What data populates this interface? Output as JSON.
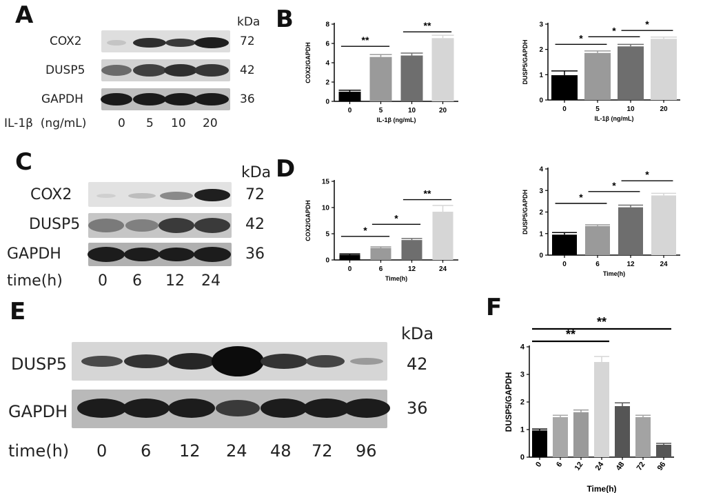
{
  "panels": {
    "A": {
      "letter": "A",
      "kda_header": "kDa",
      "rows": [
        {
          "protein": "COX2",
          "kda": "72"
        },
        {
          "protein": "DUSP5",
          "kda": "42"
        },
        {
          "protein": "GAPDH",
          "kda": "36"
        }
      ],
      "condition_label": "IL-1β  (ng/mL)",
      "lanes": [
        "0",
        "5",
        "10",
        "20"
      ]
    },
    "C": {
      "letter": "C",
      "kda_header": "kDa",
      "rows": [
        {
          "protein": "COX2",
          "kda": "72"
        },
        {
          "protein": "DUSP5",
          "kda": "42"
        },
        {
          "protein": "GAPDH",
          "kda": "36"
        }
      ],
      "condition_label": "time(h)",
      "lanes": [
        "0",
        "6",
        "12",
        "24"
      ]
    },
    "E": {
      "letter": "E",
      "kda_header": "kDa",
      "rows": [
        {
          "protein": "DUSP5",
          "kda": "42"
        },
        {
          "protein": "GAPDH",
          "kda": "36"
        }
      ],
      "condition_label": "time(h)",
      "lanes": [
        "0",
        "6",
        "12",
        "24",
        "48",
        "72",
        "96"
      ]
    },
    "B": {
      "letter": "B"
    },
    "D": {
      "letter": "D"
    },
    "F": {
      "letter": "F"
    }
  },
  "chart_data": [
    {
      "id": "B1",
      "type": "bar",
      "categories": [
        "0",
        "5",
        "10",
        "20"
      ],
      "values": [
        1.0,
        4.6,
        4.75,
        6.55
      ],
      "errors": [
        0.15,
        0.25,
        0.25,
        0.3
      ],
      "colors": [
        "#000000",
        "#9a9a9a",
        "#6e6e6e",
        "#d6d6d6"
      ],
      "xlabel": "IL-1β  (ng/mL)",
      "ylabel": "COX2/GAPDH",
      "ylim": [
        0,
        8
      ],
      "yticks": [
        0,
        2,
        4,
        6,
        8
      ],
      "significance": [
        {
          "from": 0,
          "to": 1,
          "label": "**",
          "y": 5.7
        },
        {
          "from": 2,
          "to": 3,
          "label": "**",
          "y": 7.2
        }
      ]
    },
    {
      "id": "B2",
      "type": "bar",
      "categories": [
        "0",
        "5",
        "10",
        "20"
      ],
      "values": [
        0.98,
        1.86,
        2.12,
        2.42
      ],
      "errors": [
        0.17,
        0.08,
        0.08,
        0.07
      ],
      "colors": [
        "#000000",
        "#9a9a9a",
        "#6e6e6e",
        "#d6d6d6"
      ],
      "xlabel": "IL-1β  (ng/mL)",
      "ylabel": "DUSP5/GAPDH",
      "ylim": [
        0,
        3
      ],
      "yticks": [
        0,
        1,
        2,
        3
      ],
      "significance": [
        {
          "from": 0,
          "to": 1,
          "label": "*",
          "y": 2.2
        },
        {
          "from": 1,
          "to": 2,
          "label": "*",
          "y": 2.5
        },
        {
          "from": 2,
          "to": 3,
          "label": "*",
          "y": 2.75
        }
      ]
    },
    {
      "id": "D1",
      "type": "bar",
      "categories": [
        "0",
        "6",
        "12",
        "24"
      ],
      "values": [
        1.0,
        2.3,
        3.8,
        9.2
      ],
      "errors": [
        0.15,
        0.2,
        0.3,
        1.2
      ],
      "colors": [
        "#000000",
        "#9a9a9a",
        "#6e6e6e",
        "#d6d6d6"
      ],
      "xlabel": "Time(h)",
      "ylabel": "COX2/GAPDH",
      "ylim": [
        0,
        15
      ],
      "yticks": [
        0,
        5,
        10,
        15
      ],
      "significance": [
        {
          "from": 0,
          "to": 1,
          "label": "*",
          "y": 4.5
        },
        {
          "from": 1,
          "to": 2,
          "label": "*",
          "y": 6.8
        },
        {
          "from": 2,
          "to": 3,
          "label": "**",
          "y": 11.5
        }
      ]
    },
    {
      "id": "D2",
      "type": "bar",
      "categories": [
        "0",
        "6",
        "12",
        "24"
      ],
      "values": [
        0.95,
        1.35,
        2.22,
        2.77
      ],
      "errors": [
        0.1,
        0.06,
        0.1,
        0.1
      ],
      "colors": [
        "#000000",
        "#9a9a9a",
        "#6e6e6e",
        "#d6d6d6"
      ],
      "xlabel": "Time(h)",
      "ylabel": "DUSP5/GAPDH",
      "ylim": [
        0,
        4
      ],
      "yticks": [
        0,
        1,
        2,
        3,
        4
      ],
      "significance": [
        {
          "from": 0,
          "to": 1,
          "label": "*",
          "y": 2.4
        },
        {
          "from": 1,
          "to": 2,
          "label": "*",
          "y": 2.95
        },
        {
          "from": 2,
          "to": 3,
          "label": "*",
          "y": 3.45
        }
      ]
    },
    {
      "id": "F",
      "type": "bar",
      "categories": [
        "0",
        "6",
        "12",
        "24",
        "48",
        "72",
        "96"
      ],
      "values": [
        0.97,
        1.45,
        1.63,
        3.45,
        1.85,
        1.45,
        0.45
      ],
      "errors": [
        0.05,
        0.07,
        0.08,
        0.2,
        0.12,
        0.07,
        0.05
      ],
      "colors": [
        "#000000",
        "#a8a8a8",
        "#9a9a9a",
        "#d6d6d6",
        "#555555",
        "#a3a3a3",
        "#555555"
      ],
      "xlabel": "Time(h)",
      "ylabel": "DUSP5/GAPDH",
      "ylim": [
        0,
        4
      ],
      "yticks": [
        0,
        1,
        2,
        3,
        4
      ],
      "significance": [
        {
          "from": 0,
          "to": 3,
          "label": "**",
          "y": 4.2
        },
        {
          "from": 0,
          "to": 6,
          "label": "**",
          "y": 4.65
        }
      ]
    }
  ]
}
